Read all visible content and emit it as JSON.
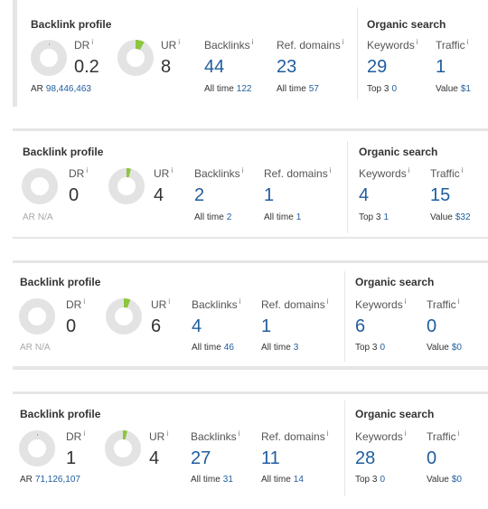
{
  "panels": [
    {
      "backlink_title": "Backlink profile",
      "dr": {
        "label": "DR",
        "info": "i",
        "value": "0.2",
        "fill": 0.002
      },
      "ur": {
        "label": "UR",
        "info": "i",
        "value": "8",
        "fill": 0.08
      },
      "ar": {
        "label": "AR",
        "value": "98,446,463"
      },
      "backlinks": {
        "label": "Backlinks",
        "info": "i",
        "value": "44",
        "sub_label": "All time",
        "sub_value": "122"
      },
      "ref_domains": {
        "label": "Ref. domains",
        "info": "i",
        "value": "23",
        "sub_label": "All time",
        "sub_value": "57"
      },
      "organic_title": "Organic search",
      "keywords": {
        "label": "Keywords",
        "info": "i",
        "value": "29",
        "sub_label": "Top 3",
        "sub_value": "0"
      },
      "traffic": {
        "label": "Traffic",
        "info": "i",
        "value": "1",
        "sub_label": "Value",
        "sub_value": "$1"
      }
    },
    {
      "backlink_title": "Backlink profile",
      "dr": {
        "label": "DR",
        "info": "i",
        "value": "0",
        "fill": 0
      },
      "ur": {
        "label": "UR",
        "info": "i",
        "value": "4",
        "fill": 0.04
      },
      "ar": {
        "label": "AR",
        "value": "N/A"
      },
      "backlinks": {
        "label": "Backlinks",
        "info": "i",
        "value": "2",
        "sub_label": "All time",
        "sub_value": "2"
      },
      "ref_domains": {
        "label": "Ref. domains",
        "info": "i",
        "value": "1",
        "sub_label": "All time",
        "sub_value": "1"
      },
      "organic_title": "Organic search",
      "keywords": {
        "label": "Keywords",
        "info": "i",
        "value": "4",
        "sub_label": "Top 3",
        "sub_value": "1"
      },
      "traffic": {
        "label": "Traffic",
        "info": "i",
        "value": "15",
        "sub_label": "Value",
        "sub_value": "$32"
      }
    },
    {
      "backlink_title": "Backlink profile",
      "dr": {
        "label": "DR",
        "info": "i",
        "value": "0",
        "fill": 0
      },
      "ur": {
        "label": "UR",
        "info": "i",
        "value": "6",
        "fill": 0.06
      },
      "ar": {
        "label": "AR",
        "value": "N/A"
      },
      "backlinks": {
        "label": "Backlinks",
        "info": "i",
        "value": "4",
        "sub_label": "All time",
        "sub_value": "46"
      },
      "ref_domains": {
        "label": "Ref. domains",
        "info": "i",
        "value": "1",
        "sub_label": "All time",
        "sub_value": "3"
      },
      "organic_title": "Organic search",
      "keywords": {
        "label": "Keywords",
        "info": "i",
        "value": "6",
        "sub_label": "Top 3",
        "sub_value": "0"
      },
      "traffic": {
        "label": "Traffic",
        "info": "i",
        "value": "0",
        "sub_label": "Value",
        "sub_value": "$0"
      }
    },
    {
      "backlink_title": "Backlink profile",
      "dr": {
        "label": "DR",
        "info": "i",
        "value": "1",
        "fill": 0.01
      },
      "ur": {
        "label": "UR",
        "info": "i",
        "value": "4",
        "fill": 0.04
      },
      "ar": {
        "label": "AR",
        "value": "71,126,107"
      },
      "backlinks": {
        "label": "Backlinks",
        "info": "i",
        "value": "27",
        "sub_label": "All time",
        "sub_value": "31"
      },
      "ref_domains": {
        "label": "Ref. domains",
        "info": "i",
        "value": "11",
        "sub_label": "All time",
        "sub_value": "14"
      },
      "organic_title": "Organic search",
      "keywords": {
        "label": "Keywords",
        "info": "i",
        "value": "28",
        "sub_label": "Top 3",
        "sub_value": "0"
      },
      "traffic": {
        "label": "Traffic",
        "info": "i",
        "value": "0",
        "sub_label": "Value",
        "sub_value": "$0"
      }
    }
  ],
  "colors": {
    "donut_track": "#e3e3e3",
    "ur_fill": "#8cc63f",
    "dr_fill": "#5b8fd6",
    "link_blue": "#1f5d9e"
  }
}
